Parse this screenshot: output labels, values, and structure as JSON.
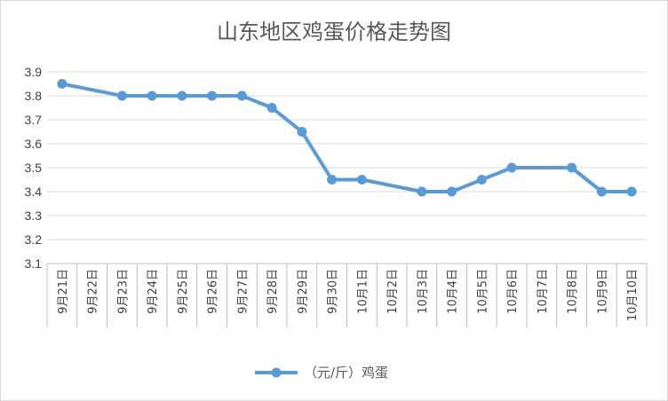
{
  "chart_data": {
    "type": "line",
    "title": "山东地区鸡蛋价格走势图",
    "categories": [
      "9月21日",
      "9月22日",
      "9月23日",
      "9月24日",
      "9月25日",
      "9月26日",
      "9月27日",
      "9月28日",
      "9月29日",
      "9月30日",
      "10月1日",
      "10月2日",
      "10月3日",
      "10月4日",
      "10月5日",
      "10月6日",
      "10月7日",
      "10月8日",
      "10月9日",
      "10月10日"
    ],
    "series": [
      {
        "name": "（元/斤）鸡蛋",
        "color": "#5b9bd5",
        "values": [
          3.85,
          null,
          3.8,
          3.8,
          3.8,
          3.8,
          3.8,
          3.75,
          3.65,
          3.45,
          3.45,
          null,
          3.4,
          3.4,
          3.45,
          3.5,
          null,
          3.5,
          3.4,
          3.4
        ]
      }
    ],
    "ylim": [
      3.1,
      3.9
    ],
    "yticks": [
      "3.1",
      "3.2",
      "3.3",
      "3.4",
      "3.5",
      "3.6",
      "3.7",
      "3.8",
      "3.9"
    ],
    "grid": true,
    "legend": "bottom"
  }
}
